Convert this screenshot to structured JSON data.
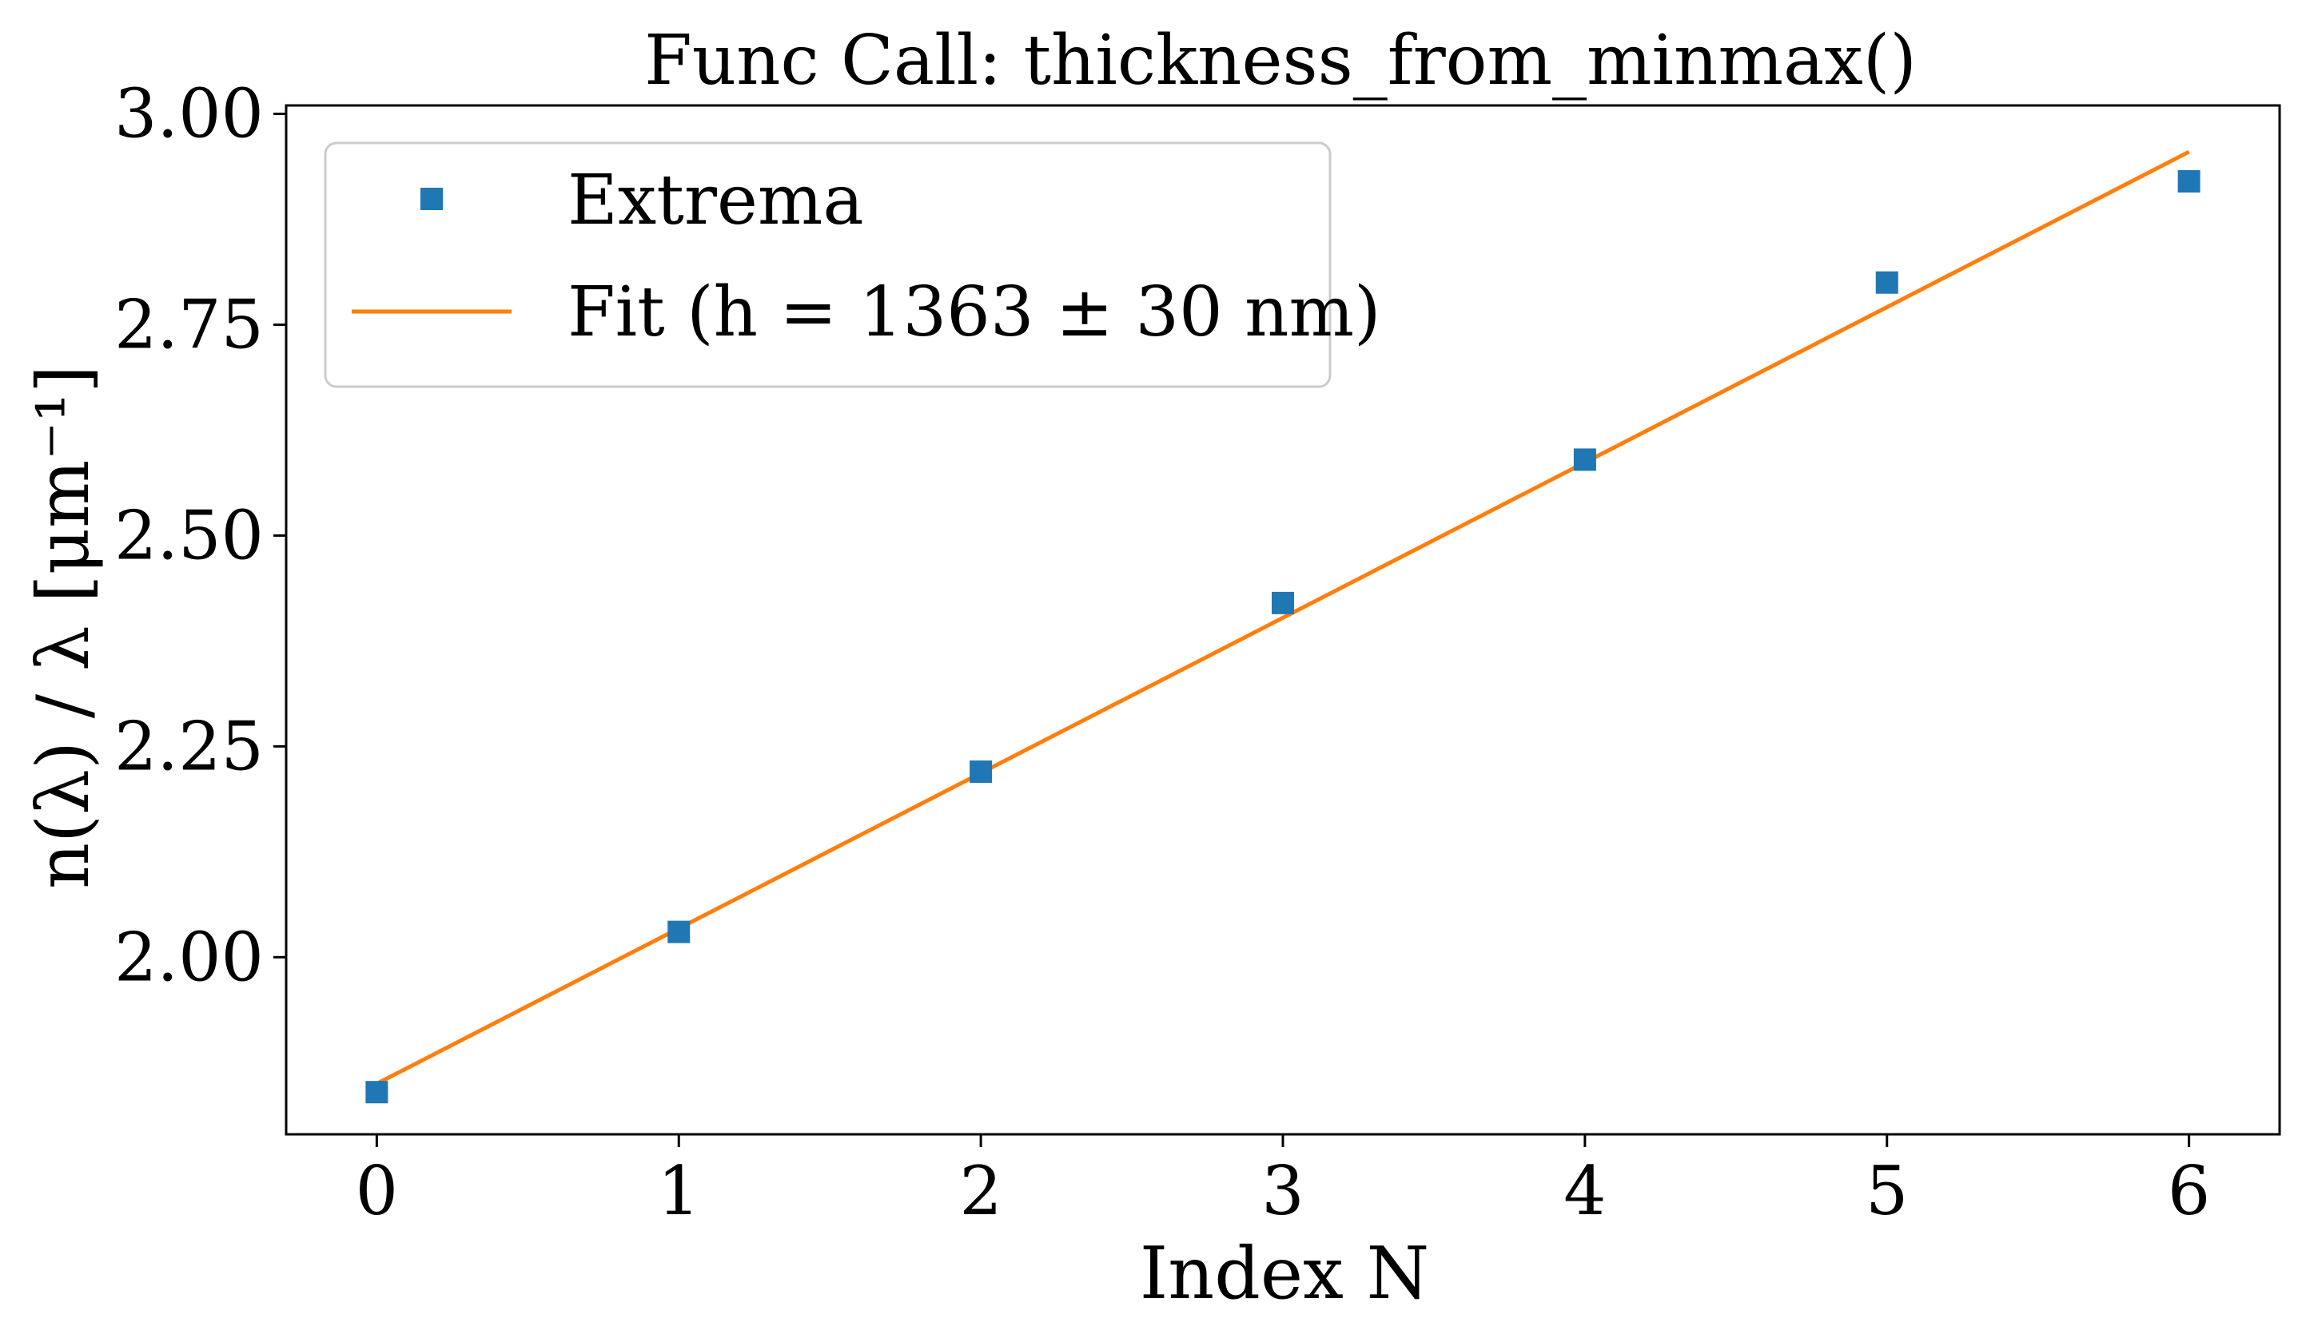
{
  "chart_data": {
    "type": "scatter",
    "title": "Func Call: thickness_from_minmax()",
    "xlabel": "Index N",
    "ylabel": "n(λ) / λ [μm⁻¹]",
    "xlim": [
      -0.3,
      6.3
    ],
    "ylim": [
      1.79,
      3.01
    ],
    "x_ticks": [
      0,
      1,
      2,
      3,
      4,
      5,
      6
    ],
    "x_tick_labels": [
      "0",
      "1",
      "2",
      "3",
      "4",
      "5",
      "6"
    ],
    "y_ticks": [
      2.0,
      2.25,
      2.5,
      2.75,
      3.0
    ],
    "y_tick_labels": [
      "2.00",
      "2.25",
      "2.50",
      "2.75",
      "3.00"
    ],
    "grid": false,
    "legend_position": "upper-left",
    "series": [
      {
        "name": "Extrema",
        "kind": "scatter",
        "marker": "square",
        "color": "#1f77b4",
        "x": [
          0,
          1,
          2,
          3,
          4,
          5,
          6
        ],
        "y": [
          1.84,
          2.03,
          2.22,
          2.42,
          2.59,
          2.8,
          2.92
        ]
      },
      {
        "name": "Fit (h = 1363 ± 30 nm)",
        "kind": "line",
        "color": "#ff7f0e",
        "x": [
          0,
          6
        ],
        "y": [
          1.85,
          2.955
        ]
      }
    ]
  }
}
